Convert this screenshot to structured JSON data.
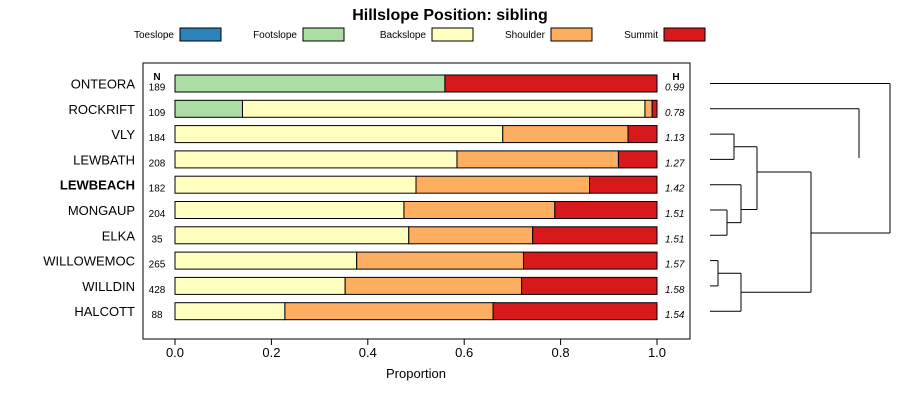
{
  "chart_data": {
    "type": "bar",
    "stacked": true,
    "orientation": "horizontal",
    "title": "Hillslope Position: sibling",
    "xlabel": "Proportion",
    "xlim": [
      0,
      1
    ],
    "xticks": [
      "0.0",
      "0.2",
      "0.4",
      "0.6",
      "0.8",
      "1.0"
    ],
    "n_header": "N",
    "h_header": "H",
    "highlight_category": "LEWBEACH",
    "legend_position": "top",
    "dendrogram": true,
    "legend": [
      {
        "name": "Toeslope",
        "color": "#2b83ba"
      },
      {
        "name": "Footslope",
        "color": "#abdda4"
      },
      {
        "name": "Backslope",
        "color": "#ffffbf"
      },
      {
        "name": "Shoulder",
        "color": "#fdae61"
      },
      {
        "name": "Summit",
        "color": "#d7191c"
      }
    ],
    "categories": [
      "ONTEORA",
      "ROCKRIFT",
      "VLY",
      "LEWBATH",
      "LEWBEACH",
      "MONGAUP",
      "ELKA",
      "WILLOWEMOC",
      "WILLDIN",
      "HALCOTT"
    ],
    "n": [
      "189",
      "109",
      "184",
      "208",
      "182",
      "204",
      "35",
      "265",
      "428",
      "88"
    ],
    "h": [
      "0.99",
      "0.78",
      "1.13",
      "1.27",
      "1.42",
      "1.51",
      "1.51",
      "1.57",
      "1.58",
      "1.54"
    ],
    "series": [
      {
        "name": "Toeslope",
        "values": [
          0,
          0,
          0,
          0,
          0,
          0,
          0,
          0,
          0,
          0
        ]
      },
      {
        "name": "Footslope",
        "values": [
          0.56,
          0.14,
          0,
          0,
          0,
          0,
          0,
          0,
          0,
          0
        ]
      },
      {
        "name": "Backslope",
        "values": [
          0,
          0.835,
          0.68,
          0.585,
          0.5,
          0.475,
          0.485,
          0.377,
          0.353,
          0.228
        ]
      },
      {
        "name": "Shoulder",
        "values": [
          0,
          0.015,
          0.26,
          0.335,
          0.36,
          0.313,
          0.257,
          0.346,
          0.366,
          0.432
        ]
      },
      {
        "name": "Summit",
        "values": [
          0.44,
          0.01,
          0.06,
          0.08,
          0.14,
          0.212,
          0.258,
          0.277,
          0.281,
          0.34
        ]
      }
    ]
  }
}
